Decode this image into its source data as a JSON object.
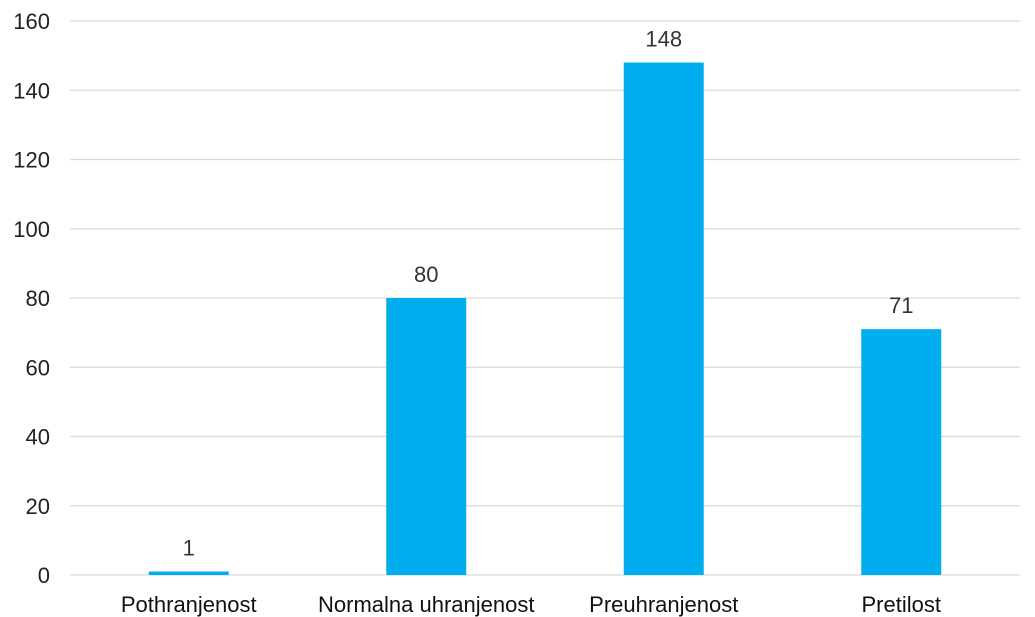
{
  "chart_data": {
    "type": "bar",
    "title": "",
    "xlabel": "",
    "ylabel": "",
    "categories": [
      "Pothranjenost",
      "Normalna uhranjenost",
      "Preuhranjenost",
      "Pretilost"
    ],
    "values": [
      1,
      80,
      148,
      71
    ],
    "data_labels": [
      "1",
      "80",
      "148",
      "71"
    ],
    "ylim": [
      0,
      160
    ],
    "yticks": [
      0,
      20,
      40,
      60,
      80,
      100,
      120,
      140,
      160
    ],
    "ytick_labels": [
      "0",
      "20",
      "40",
      "60",
      "80",
      "100",
      "120",
      "140",
      "160"
    ],
    "grid": true,
    "legend": false,
    "bar_color": "#00AEEF",
    "gridline_color": "#D9D9D9"
  }
}
